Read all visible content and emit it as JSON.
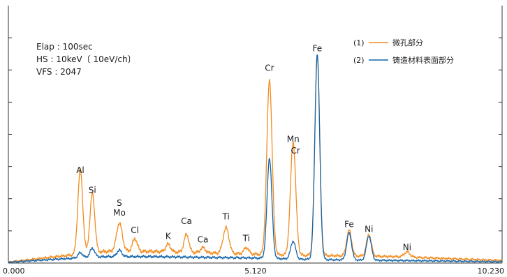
{
  "colors": {
    "orange": "#f28c1e",
    "blue": "#1565a8",
    "axis": "#333333"
  },
  "info": [
    "Elap :   100sec",
    "HS :      10keV〔 10eV/ch〕",
    "VFS :   2047"
  ],
  "legend": [
    {
      "id": "(1)",
      "label": "微孔部分",
      "color": "#f28c1e"
    },
    {
      "id": "(2)",
      "label": "铸造材料表面部分",
      "color": "#1565a8"
    }
  ],
  "chart_data": {
    "type": "line",
    "title": "",
    "xlabel": "",
    "ylabel": "",
    "xlim": [
      0,
      10.23
    ],
    "ylim": [
      0,
      1000
    ],
    "x_tick_labels": [
      {
        "x": 0.0,
        "label": "0.000"
      },
      {
        "x": 5.12,
        "label": "5.120"
      },
      {
        "x": 10.23,
        "label": "10.230"
      }
    ],
    "y_ticks": [
      125,
      250,
      375,
      500,
      625,
      750,
      875
    ],
    "series": [
      {
        "name": "(1) 微孔部分",
        "color": "#f28c1e",
        "baseline": [
          [
            0.0,
            4
          ],
          [
            1.0,
            25
          ],
          [
            2.0,
            45
          ],
          [
            3.0,
            45
          ],
          [
            4.0,
            40
          ],
          [
            5.0,
            35
          ],
          [
            6.0,
            30
          ],
          [
            7.0,
            28
          ],
          [
            8.0,
            25
          ],
          [
            9.0,
            18
          ],
          [
            10.23,
            10
          ]
        ],
        "peaks": [
          [
            1.49,
            330,
            0.05
          ],
          [
            1.74,
            230,
            0.05
          ],
          [
            2.3,
            110,
            0.06
          ],
          [
            2.62,
            50,
            0.05
          ],
          [
            3.31,
            30,
            0.05
          ],
          [
            3.69,
            70,
            0.05
          ],
          [
            4.03,
            20,
            0.05
          ],
          [
            4.51,
            100,
            0.06
          ],
          [
            4.93,
            25,
            0.05
          ],
          [
            5.41,
            680,
            0.055
          ],
          [
            5.9,
            440,
            0.055
          ],
          [
            6.4,
            780,
            0.05
          ],
          [
            7.06,
            100,
            0.05
          ],
          [
            7.47,
            85,
            0.05
          ],
          [
            8.26,
            20,
            0.06
          ]
        ]
      },
      {
        "name": "(2) 铸造材料表面部分",
        "color": "#1565a8",
        "baseline": [
          [
            0.0,
            3
          ],
          [
            1.0,
            15
          ],
          [
            2.0,
            25
          ],
          [
            3.0,
            25
          ],
          [
            4.0,
            22
          ],
          [
            5.0,
            20
          ],
          [
            6.0,
            15
          ],
          [
            7.0,
            12
          ],
          [
            8.0,
            10
          ],
          [
            9.0,
            8
          ],
          [
            10.23,
            5
          ]
        ],
        "peaks": [
          [
            1.49,
            20,
            0.05
          ],
          [
            1.74,
            35,
            0.05
          ],
          [
            2.3,
            25,
            0.05
          ],
          [
            5.41,
            390,
            0.05
          ],
          [
            5.9,
            70,
            0.05
          ],
          [
            6.4,
            800,
            0.05
          ],
          [
            7.06,
            105,
            0.05
          ],
          [
            7.47,
            95,
            0.05
          ]
        ]
      }
    ],
    "annotations": [
      {
        "text": "Al",
        "x": 1.49,
        "y": 350
      },
      {
        "text": "Si",
        "x": 1.74,
        "y": 272
      },
      {
        "text": "S",
        "x": 2.3,
        "y": 222
      },
      {
        "text": "Mo",
        "x": 2.3,
        "y": 184
      },
      {
        "text": "Cl",
        "x": 2.62,
        "y": 116
      },
      {
        "text": "K",
        "x": 3.31,
        "y": 93
      },
      {
        "text": "Ca",
        "x": 3.69,
        "y": 152
      },
      {
        "text": "Ca",
        "x": 4.03,
        "y": 80
      },
      {
        "text": "Ti",
        "x": 4.51,
        "y": 170
      },
      {
        "text": "Ti",
        "x": 4.93,
        "y": 85
      },
      {
        "text": "Cr",
        "x": 5.41,
        "y": 747
      },
      {
        "text": "Mn",
        "x": 5.9,
        "y": 470
      },
      {
        "text": "Cr",
        "x": 5.95,
        "y": 425
      },
      {
        "text": "Fe",
        "x": 6.4,
        "y": 822
      },
      {
        "text": "Fe",
        "x": 7.06,
        "y": 140
      },
      {
        "text": "Ni",
        "x": 7.47,
        "y": 121
      },
      {
        "text": "Ni",
        "x": 8.26,
        "y": 50
      }
    ]
  }
}
